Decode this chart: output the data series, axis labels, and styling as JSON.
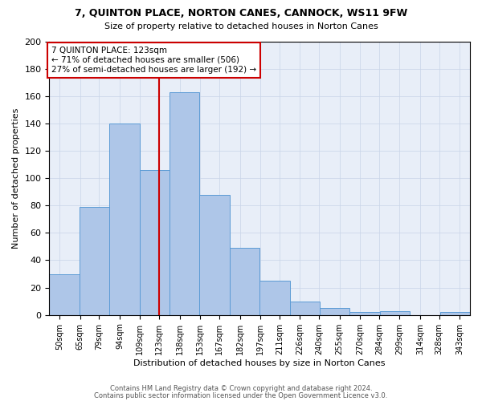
{
  "title": "7, QUINTON PLACE, NORTON CANES, CANNOCK, WS11 9FW",
  "subtitle": "Size of property relative to detached houses in Norton Canes",
  "xlabel": "Distribution of detached houses by size in Norton Canes",
  "ylabel": "Number of detached properties",
  "xtick_labels": [
    "50sqm",
    "65sqm",
    "79sqm",
    "94sqm",
    "109sqm",
    "123sqm",
    "138sqm",
    "153sqm",
    "167sqm",
    "182sqm",
    "197sqm",
    "211sqm",
    "226sqm",
    "240sqm",
    "255sqm",
    "270sqm",
    "284sqm",
    "299sqm",
    "314sqm",
    "328sqm",
    "343sqm"
  ],
  "xtick_positions": [
    50,
    65,
    79,
    94,
    109,
    123,
    138,
    153,
    167,
    182,
    197,
    211,
    226,
    240,
    255,
    270,
    284,
    299,
    314,
    328,
    343
  ],
  "bar_heights": [
    30,
    79,
    140,
    106,
    163,
    88,
    49,
    25,
    10,
    5,
    2,
    3,
    0,
    2
  ],
  "bar_color": "#aec6e8",
  "bar_edge_color": "#5b9bd5",
  "vline_x": 123,
  "vline_color": "#cc0000",
  "annotation_text": "7 QUINTON PLACE: 123sqm\n← 71% of detached houses are smaller (506)\n27% of semi-detached houses are larger (192) →",
  "annotation_box_color": "#ffffff",
  "annotation_box_edge": "#cc0000",
  "ylim": [
    0,
    200
  ],
  "yticks": [
    0,
    20,
    40,
    60,
    80,
    100,
    120,
    140,
    160,
    180,
    200
  ],
  "xlim_left": 42.5,
  "xlim_right": 350.5,
  "footer1": "Contains HM Land Registry data © Crown copyright and database right 2024.",
  "footer2": "Contains public sector information licensed under the Open Government Licence v3.0.",
  "bg_color": "#e8eef8",
  "grid_color": "#c8d4e8"
}
